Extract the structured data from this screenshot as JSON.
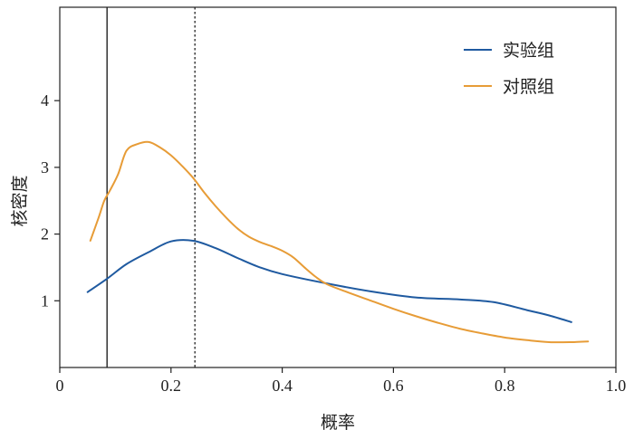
{
  "chart_data": {
    "type": "line",
    "title": "",
    "xlabel": "概率",
    "ylabel": "核密度",
    "xlim": [
      0,
      1.0
    ],
    "ylim": [
      0,
      5.4
    ],
    "xticks": [
      "0",
      "0.2",
      "0.4",
      "0.6",
      "0.8",
      "1.0"
    ],
    "yticks": [
      "1",
      "2",
      "3",
      "4"
    ],
    "legend_position": "top-right",
    "reference_lines": [
      {
        "x": 0.085,
        "style": "solid"
      },
      {
        "x": 0.243,
        "style": "dotted"
      }
    ],
    "series": [
      {
        "name": "实验组",
        "color": "#1f5aa0",
        "x": [
          0.05,
          0.085,
          0.12,
          0.16,
          0.2,
          0.24,
          0.28,
          0.32,
          0.36,
          0.4,
          0.48,
          0.56,
          0.64,
          0.72,
          0.78,
          0.84,
          0.88,
          0.92
        ],
        "y": [
          1.13,
          1.33,
          1.55,
          1.73,
          1.89,
          1.9,
          1.79,
          1.64,
          1.5,
          1.4,
          1.26,
          1.14,
          1.05,
          1.02,
          0.98,
          0.86,
          0.78,
          0.68
        ]
      },
      {
        "name": "对照组",
        "color": "#e79c37",
        "x": [
          0.055,
          0.07,
          0.08,
          0.09,
          0.105,
          0.12,
          0.14,
          0.16,
          0.18,
          0.2,
          0.22,
          0.24,
          0.26,
          0.28,
          0.3,
          0.32,
          0.34,
          0.36,
          0.38,
          0.4,
          0.42,
          0.44,
          0.46,
          0.48,
          0.52,
          0.56,
          0.6,
          0.64,
          0.68,
          0.72,
          0.76,
          0.8,
          0.84,
          0.88,
          0.92,
          0.95
        ],
        "y": [
          1.9,
          2.25,
          2.5,
          2.65,
          2.9,
          3.25,
          3.35,
          3.38,
          3.3,
          3.18,
          3.02,
          2.84,
          2.62,
          2.42,
          2.24,
          2.08,
          1.96,
          1.88,
          1.82,
          1.75,
          1.65,
          1.5,
          1.36,
          1.25,
          1.12,
          1.0,
          0.88,
          0.77,
          0.67,
          0.58,
          0.51,
          0.45,
          0.41,
          0.38,
          0.38,
          0.39
        ]
      }
    ]
  }
}
